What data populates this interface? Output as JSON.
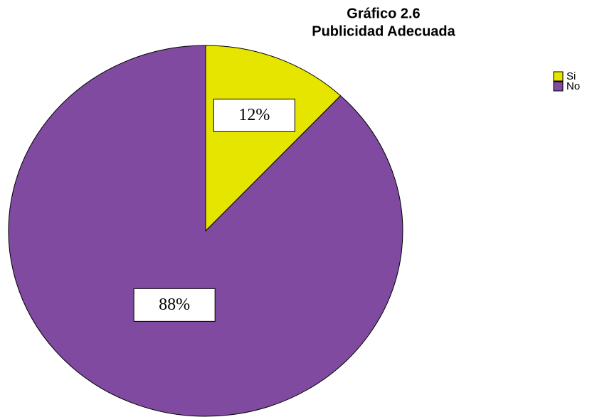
{
  "chart_data": {
    "type": "pie",
    "title": "Gráfico 2.6",
    "subtitle": "Publicidad Adecuada",
    "categories": [
      "Si",
      "No"
    ],
    "values": [
      12,
      88
    ],
    "value_labels": [
      "12%",
      "88%"
    ],
    "colors": [
      "#e5e500",
      "#7f4a9f"
    ],
    "legend": "right"
  }
}
